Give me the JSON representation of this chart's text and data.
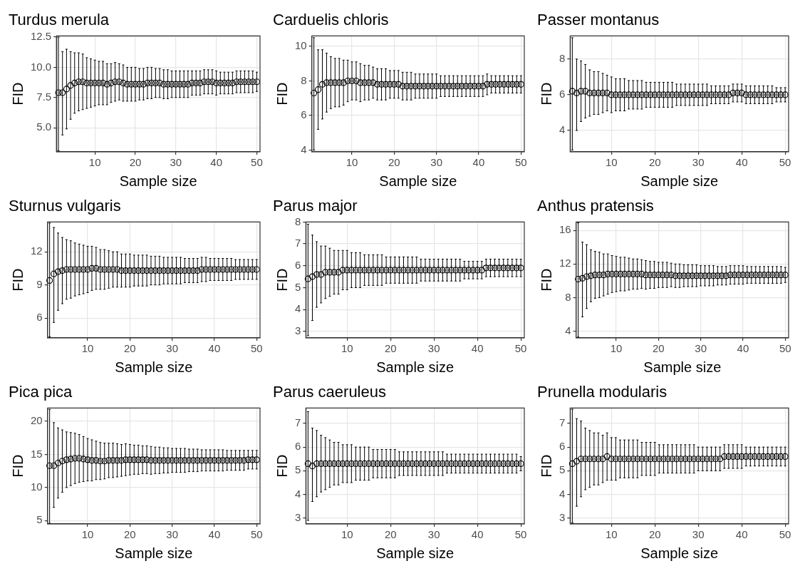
{
  "chart_data": [
    {
      "type": "scatter",
      "title": "Turdus merula",
      "xlabel": "Sample size",
      "ylabel": "FID",
      "color": "#000000",
      "marker": "circle",
      "grid": true,
      "xlim": [
        0.5,
        50.8
      ],
      "xticks": [
        10,
        20,
        30,
        40,
        50
      ],
      "ylim": [
        3,
        12.6
      ],
      "yticks": [
        {
          "value": 5,
          "label": "5.0"
        },
        {
          "value": 7.5,
          "label": "7.5"
        },
        {
          "value": 10,
          "label": "10.0"
        },
        {
          "value": 12.5,
          "label": "12.5"
        }
      ],
      "x": [
        1,
        2,
        3,
        4,
        5,
        6,
        7,
        8,
        9,
        10,
        11,
        12,
        13,
        14,
        15,
        16,
        17,
        18,
        19,
        20,
        21,
        22,
        23,
        24,
        25,
        26,
        27,
        28,
        29,
        30,
        31,
        32,
        33,
        34,
        35,
        36,
        37,
        38,
        39,
        40,
        41,
        42,
        43,
        44,
        45,
        46,
        47,
        48,
        49,
        50
      ],
      "values": [
        7.9,
        7.9,
        8.2,
        8.5,
        8.7,
        8.8,
        8.8,
        8.7,
        8.7,
        8.7,
        8.7,
        8.7,
        8.6,
        8.7,
        8.8,
        8.8,
        8.7,
        8.6,
        8.6,
        8.6,
        8.6,
        8.6,
        8.7,
        8.7,
        8.7,
        8.7,
        8.6,
        8.6,
        8.6,
        8.6,
        8.6,
        8.6,
        8.6,
        8.7,
        8.7,
        8.7,
        8.8,
        8.8,
        8.8,
        8.7,
        8.7,
        8.7,
        8.7,
        8.7,
        8.8,
        8.8,
        8.8,
        8.8,
        8.8,
        8.8
      ],
      "errors": [
        [
          3.1,
          12.5
        ],
        [
          4.4,
          11.3
        ],
        3.3,
        2.8,
        2.5,
        2.4,
        2.3,
        2.1,
        2.0,
        1.9,
        1.8,
        1.8,
        1.7,
        1.6,
        1.6,
        1.5,
        1.5,
        1.4,
        1.4,
        1.4,
        1.3,
        1.3,
        1.3,
        1.3,
        1.2,
        1.2,
        1.2,
        1.2,
        1.1,
        1.1,
        1.1,
        1.1,
        1.1,
        1.0,
        1.0,
        1.0,
        1.0,
        1.0,
        1.0,
        1.0,
        0.9,
        0.9,
        0.9,
        0.9,
        0.9,
        0.9,
        0.9,
        0.9,
        0.9,
        0.8
      ]
    },
    {
      "type": "scatter",
      "title": "Carduelis chloris",
      "xlabel": "Sample size",
      "ylabel": "FID",
      "color": "#000000",
      "marker": "circle",
      "grid": true,
      "xlim": [
        0.5,
        50.8
      ],
      "xticks": [
        10,
        20,
        30,
        40,
        50
      ],
      "ylim": [
        3.9,
        10.6
      ],
      "yticks": [
        4,
        6,
        8,
        10
      ],
      "x": [
        1,
        2,
        3,
        4,
        5,
        6,
        7,
        8,
        9,
        10,
        11,
        12,
        13,
        14,
        15,
        16,
        17,
        18,
        19,
        20,
        21,
        22,
        23,
        24,
        25,
        26,
        27,
        28,
        29,
        30,
        31,
        32,
        33,
        34,
        35,
        36,
        37,
        38,
        39,
        40,
        41,
        42,
        43,
        44,
        45,
        46,
        47,
        48,
        49,
        50
      ],
      "values": [
        7.3,
        7.5,
        7.8,
        7.9,
        7.9,
        7.9,
        7.9,
        7.9,
        8.0,
        8.0,
        8.0,
        7.9,
        7.9,
        7.9,
        7.9,
        7.8,
        7.8,
        7.8,
        7.8,
        7.8,
        7.8,
        7.7,
        7.7,
        7.7,
        7.7,
        7.7,
        7.7,
        7.7,
        7.7,
        7.7,
        7.7,
        7.7,
        7.7,
        7.7,
        7.7,
        7.7,
        7.7,
        7.7,
        7.7,
        7.7,
        7.7,
        7.8,
        7.8,
        7.8,
        7.8,
        7.8,
        7.8,
        7.8,
        7.8,
        7.8
      ],
      "errors": [
        [
          4.0,
          10.5
        ],
        [
          5.2,
          9.8
        ],
        2.0,
        1.7,
        1.5,
        1.4,
        1.4,
        1.3,
        1.2,
        1.1,
        1.1,
        1.1,
        1.0,
        1.0,
        0.9,
        0.9,
        0.9,
        0.9,
        0.8,
        0.8,
        0.8,
        0.8,
        0.8,
        0.8,
        0.7,
        0.7,
        0.7,
        0.7,
        0.7,
        0.7,
        0.6,
        0.6,
        0.6,
        0.6,
        0.6,
        0.6,
        0.6,
        0.6,
        0.6,
        0.6,
        0.6,
        0.6,
        0.5,
        0.5,
        0.5,
        0.5,
        0.5,
        0.5,
        0.5,
        0.5
      ]
    },
    {
      "type": "scatter",
      "title": "Passer montanus",
      "xlabel": "Sample size",
      "ylabel": "FID",
      "color": "#000000",
      "marker": "circle",
      "grid": true,
      "xlim": [
        0.5,
        50.8
      ],
      "xticks": [
        10,
        20,
        30,
        40,
        50
      ],
      "ylim": [
        2.8,
        9.3
      ],
      "yticks": [
        4,
        6,
        8
      ],
      "x": [
        1,
        2,
        3,
        4,
        5,
        6,
        7,
        8,
        9,
        10,
        11,
        12,
        13,
        14,
        15,
        16,
        17,
        18,
        19,
        20,
        21,
        22,
        23,
        24,
        25,
        26,
        27,
        28,
        29,
        30,
        31,
        32,
        33,
        34,
        35,
        36,
        37,
        38,
        39,
        40,
        41,
        42,
        43,
        44,
        45,
        46,
        47,
        48,
        49,
        50
      ],
      "values": [
        6.2,
        6.1,
        6.2,
        6.2,
        6.1,
        6.1,
        6.1,
        6.1,
        6.1,
        6.0,
        6.0,
        6.0,
        6.0,
        6.0,
        6.0,
        6.0,
        6.0,
        6.0,
        6.0,
        6.0,
        6.0,
        6.0,
        6.0,
        6.0,
        6.0,
        6.0,
        6.0,
        6.0,
        6.0,
        6.0,
        6.0,
        6.0,
        6.0,
        6.0,
        6.0,
        6.0,
        6.0,
        6.1,
        6.1,
        6.1,
        6.0,
        6.0,
        6.0,
        6.0,
        6.0,
        6.0,
        6.0,
        6.0,
        6.0,
        6.0
      ],
      "errors": [
        [
          2.9,
          9.2
        ],
        [
          4.0,
          8.0
        ],
        1.7,
        1.5,
        1.3,
        1.2,
        1.2,
        1.1,
        1.0,
        1.0,
        0.9,
        0.9,
        0.9,
        0.8,
        0.8,
        0.8,
        0.8,
        0.7,
        0.7,
        0.7,
        0.7,
        0.7,
        0.7,
        0.7,
        0.6,
        0.6,
        0.6,
        0.6,
        0.6,
        0.6,
        0.6,
        0.6,
        0.5,
        0.5,
        0.5,
        0.5,
        0.5,
        0.5,
        0.5,
        0.5,
        0.5,
        0.5,
        0.5,
        0.5,
        0.5,
        0.5,
        0.5,
        0.4,
        0.4,
        0.4
      ]
    },
    {
      "type": "scatter",
      "title": "Sturnus vulgaris",
      "xlabel": "Sample size",
      "ylabel": "FID",
      "color": "#000000",
      "marker": "circle",
      "grid": true,
      "xlim": [
        0.5,
        50.8
      ],
      "xticks": [
        10,
        20,
        30,
        40,
        50
      ],
      "ylim": [
        4.2,
        14.7
      ],
      "yticks": [
        6,
        9,
        12
      ],
      "x": [
        1,
        2,
        3,
        4,
        5,
        6,
        7,
        8,
        9,
        10,
        11,
        12,
        13,
        14,
        15,
        16,
        17,
        18,
        19,
        20,
        21,
        22,
        23,
        24,
        25,
        26,
        27,
        28,
        29,
        30,
        31,
        32,
        33,
        34,
        35,
        36,
        37,
        38,
        39,
        40,
        41,
        42,
        43,
        44,
        45,
        46,
        47,
        48,
        49,
        50
      ],
      "values": [
        9.4,
        10.0,
        10.2,
        10.3,
        10.4,
        10.4,
        10.4,
        10.4,
        10.4,
        10.4,
        10.5,
        10.5,
        10.4,
        10.4,
        10.4,
        10.4,
        10.4,
        10.3,
        10.3,
        10.3,
        10.3,
        10.3,
        10.3,
        10.3,
        10.3,
        10.3,
        10.3,
        10.3,
        10.3,
        10.3,
        10.3,
        10.3,
        10.3,
        10.3,
        10.3,
        10.3,
        10.4,
        10.4,
        10.4,
        10.4,
        10.4,
        10.4,
        10.4,
        10.4,
        10.4,
        10.4,
        10.4,
        10.4,
        10.4,
        10.4
      ],
      "errors": [
        [
          4.3,
          14.6
        ],
        [
          5.6,
          14.2
        ],
        3.5,
        3.0,
        2.7,
        2.6,
        2.4,
        2.3,
        2.2,
        2.1,
        2.0,
        1.9,
        1.8,
        1.8,
        1.7,
        1.6,
        1.6,
        1.5,
        1.5,
        1.5,
        1.4,
        1.4,
        1.4,
        1.4,
        1.3,
        1.3,
        1.3,
        1.2,
        1.2,
        1.2,
        1.2,
        1.2,
        1.1,
        1.1,
        1.1,
        1.1,
        1.1,
        1.1,
        1.0,
        1.0,
        1.0,
        1.0,
        1.0,
        1.0,
        0.9,
        0.9,
        0.9,
        0.9,
        0.9,
        0.9
      ]
    },
    {
      "type": "scatter",
      "title": "Parus major",
      "xlabel": "Sample size",
      "ylabel": "FID",
      "color": "#000000",
      "marker": "circle",
      "grid": true,
      "xlim": [
        0.5,
        50.8
      ],
      "xticks": [
        10,
        20,
        30,
        40,
        50
      ],
      "ylim": [
        2.7,
        8
      ],
      "yticks": [
        3,
        4,
        5,
        6,
        7,
        8
      ],
      "x": [
        1,
        2,
        3,
        4,
        5,
        6,
        7,
        8,
        9,
        10,
        11,
        12,
        13,
        14,
        15,
        16,
        17,
        18,
        19,
        20,
        21,
        22,
        23,
        24,
        25,
        26,
        27,
        28,
        29,
        30,
        31,
        32,
        33,
        34,
        35,
        36,
        37,
        38,
        39,
        40,
        41,
        42,
        43,
        44,
        45,
        46,
        47,
        48,
        49,
        50
      ],
      "values": [
        5.4,
        5.5,
        5.6,
        5.6,
        5.7,
        5.7,
        5.7,
        5.7,
        5.8,
        5.8,
        5.8,
        5.8,
        5.8,
        5.8,
        5.8,
        5.8,
        5.8,
        5.8,
        5.8,
        5.8,
        5.8,
        5.8,
        5.8,
        5.8,
        5.8,
        5.8,
        5.8,
        5.8,
        5.8,
        5.8,
        5.8,
        5.8,
        5.8,
        5.8,
        5.8,
        5.8,
        5.8,
        5.8,
        5.8,
        5.8,
        5.8,
        5.9,
        5.9,
        5.9,
        5.9,
        5.9,
        5.9,
        5.9,
        5.9,
        5.9
      ],
      "errors": [
        [
          2.8,
          7.9
        ],
        [
          3.5,
          7.4
        ],
        1.5,
        1.3,
        1.2,
        1.1,
        1.0,
        1.0,
        0.9,
        0.9,
        0.8,
        0.8,
        0.8,
        0.7,
        0.7,
        0.7,
        0.7,
        0.7,
        0.6,
        0.6,
        0.6,
        0.6,
        0.6,
        0.6,
        0.6,
        0.6,
        0.5,
        0.5,
        0.5,
        0.5,
        0.5,
        0.5,
        0.5,
        0.5,
        0.5,
        0.5,
        0.4,
        0.4,
        0.4,
        0.4,
        0.4,
        0.4,
        0.4,
        0.4,
        0.4,
        0.4,
        0.4,
        0.4,
        0.4,
        0.4
      ]
    },
    {
      "type": "scatter",
      "title": "Anthus pratensis",
      "xlabel": "Sample size",
      "ylabel": "FID",
      "color": "#000000",
      "marker": "circle",
      "grid": true,
      "xlim": [
        0.5,
        50.8
      ],
      "xticks": [
        10,
        20,
        30,
        40,
        50
      ],
      "ylim": [
        3.2,
        17
      ],
      "yticks": [
        4,
        8,
        12,
        16
      ],
      "x": [
        1,
        2,
        3,
        4,
        5,
        6,
        7,
        8,
        9,
        10,
        11,
        12,
        13,
        14,
        15,
        16,
        17,
        18,
        19,
        20,
        21,
        22,
        23,
        24,
        25,
        26,
        27,
        28,
        29,
        30,
        31,
        32,
        33,
        34,
        35,
        36,
        37,
        38,
        39,
        40,
        41,
        42,
        43,
        44,
        45,
        46,
        47,
        48,
        49,
        50
      ],
      "values": [
        10.2,
        10.3,
        10.5,
        10.6,
        10.7,
        10.7,
        10.7,
        10.8,
        10.8,
        10.8,
        10.8,
        10.8,
        10.8,
        10.8,
        10.8,
        10.8,
        10.7,
        10.7,
        10.7,
        10.7,
        10.7,
        10.7,
        10.7,
        10.6,
        10.6,
        10.6,
        10.6,
        10.6,
        10.6,
        10.6,
        10.6,
        10.6,
        10.6,
        10.6,
        10.6,
        10.6,
        10.7,
        10.7,
        10.7,
        10.7,
        10.7,
        10.7,
        10.7,
        10.7,
        10.7,
        10.7,
        10.7,
        10.7,
        10.7,
        10.7
      ],
      "errors": [
        [
          3.3,
          16.9
        ],
        [
          5.7,
          14.6
        ],
        3.8,
        3.1,
        2.8,
        2.7,
        2.5,
        2.4,
        2.2,
        2.1,
        2.0,
        2.0,
        1.9,
        1.8,
        1.8,
        1.7,
        1.7,
        1.6,
        1.6,
        1.5,
        1.5,
        1.5,
        1.4,
        1.4,
        1.4,
        1.3,
        1.3,
        1.3,
        1.3,
        1.2,
        1.2,
        1.2,
        1.2,
        1.1,
        1.1,
        1.1,
        1.1,
        1.1,
        1.1,
        1.1,
        1.0,
        1.0,
        1.0,
        1.0,
        1.0,
        1.0,
        1.0,
        1.0,
        1.0,
        0.9
      ]
    },
    {
      "type": "scatter",
      "title": "Pica pica",
      "xlabel": "Sample size",
      "ylabel": "FID",
      "color": "#000000",
      "marker": "circle",
      "grid": true,
      "xlim": [
        0.5,
        50.8
      ],
      "xticks": [
        10,
        20,
        30,
        40,
        50
      ],
      "ylim": [
        4.5,
        22
      ],
      "yticks": [
        5,
        10,
        15,
        20
      ],
      "x": [
        1,
        2,
        3,
        4,
        5,
        6,
        7,
        8,
        9,
        10,
        11,
        12,
        13,
        14,
        15,
        16,
        17,
        18,
        19,
        20,
        21,
        22,
        23,
        24,
        25,
        26,
        27,
        28,
        29,
        30,
        31,
        32,
        33,
        34,
        35,
        36,
        37,
        38,
        39,
        40,
        41,
        42,
        43,
        44,
        45,
        46,
        47,
        48,
        49,
        50
      ],
      "values": [
        13.3,
        13.3,
        13.7,
        14.0,
        14.2,
        14.3,
        14.4,
        14.4,
        14.3,
        14.2,
        14.1,
        14.1,
        14.0,
        14.0,
        14.1,
        14.1,
        14.1,
        14.1,
        14.2,
        14.2,
        14.2,
        14.2,
        14.2,
        14.2,
        14.1,
        14.1,
        14.1,
        14.1,
        14.1,
        14.1,
        14.1,
        14.1,
        14.1,
        14.1,
        14.1,
        14.1,
        14.1,
        14.1,
        14.1,
        14.1,
        14.1,
        14.1,
        14.1,
        14.1,
        14.1,
        14.1,
        14.1,
        14.2,
        14.2,
        14.2
      ],
      "errors": [
        [
          4.6,
          21.8
        ],
        [
          7.0,
          19.8
        ],
        5.3,
        4.7,
        4.2,
        4.0,
        3.8,
        3.6,
        3.4,
        3.2,
        3.1,
        2.9,
        2.8,
        2.7,
        2.6,
        2.6,
        2.5,
        2.4,
        2.4,
        2.3,
        2.2,
        2.2,
        2.1,
        2.1,
        2.1,
        2.0,
        2.0,
        1.9,
        1.9,
        1.8,
        1.8,
        1.8,
        1.8,
        1.7,
        1.7,
        1.7,
        1.6,
        1.6,
        1.6,
        1.6,
        1.6,
        1.6,
        1.5,
        1.5,
        1.5,
        1.5,
        1.5,
        1.4,
        1.4,
        1.4
      ]
    },
    {
      "type": "scatter",
      "title": "Parus caeruleus",
      "xlabel": "Sample size",
      "ylabel": "FID",
      "color": "#000000",
      "marker": "circle",
      "grid": true,
      "xlim": [
        0.5,
        50.8
      ],
      "xticks": [
        10,
        20,
        30,
        40,
        50
      ],
      "ylim": [
        2.75,
        7.65
      ],
      "yticks": [
        3,
        4,
        5,
        6,
        7
      ],
      "x": [
        1,
        2,
        3,
        4,
        5,
        6,
        7,
        8,
        9,
        10,
        11,
        12,
        13,
        14,
        15,
        16,
        17,
        18,
        19,
        20,
        21,
        22,
        23,
        24,
        25,
        26,
        27,
        28,
        29,
        30,
        31,
        32,
        33,
        34,
        35,
        36,
        37,
        38,
        39,
        40,
        41,
        42,
        43,
        44,
        45,
        46,
        47,
        48,
        49,
        50
      ],
      "values": [
        5.3,
        5.2,
        5.3,
        5.3,
        5.3,
        5.3,
        5.3,
        5.3,
        5.3,
        5.3,
        5.3,
        5.3,
        5.3,
        5.3,
        5.3,
        5.3,
        5.3,
        5.3,
        5.3,
        5.3,
        5.3,
        5.3,
        5.3,
        5.3,
        5.3,
        5.3,
        5.3,
        5.3,
        5.3,
        5.3,
        5.3,
        5.3,
        5.3,
        5.3,
        5.3,
        5.3,
        5.3,
        5.3,
        5.3,
        5.3,
        5.3,
        5.3,
        5.3,
        5.3,
        5.3,
        5.3,
        5.3,
        5.3,
        5.3,
        5.3
      ],
      "errors": [
        [
          2.9,
          7.5
        ],
        [
          3.7,
          6.8
        ],
        1.4,
        1.2,
        1.1,
        1.0,
        0.9,
        0.9,
        0.8,
        0.8,
        0.8,
        0.7,
        0.7,
        0.7,
        0.7,
        0.6,
        0.6,
        0.6,
        0.6,
        0.6,
        0.6,
        0.5,
        0.5,
        0.5,
        0.5,
        0.5,
        0.5,
        0.5,
        0.5,
        0.5,
        0.5,
        0.5,
        0.4,
        0.4,
        0.4,
        0.4,
        0.4,
        0.4,
        0.4,
        0.4,
        0.4,
        0.4,
        0.4,
        0.4,
        0.4,
        0.4,
        0.4,
        0.4,
        0.4,
        0.3
      ]
    },
    {
      "type": "scatter",
      "title": "Prunella modularis",
      "xlabel": "Sample size",
      "ylabel": "FID",
      "color": "#000000",
      "marker": "circle",
      "grid": true,
      "xlim": [
        0.5,
        50.8
      ],
      "xticks": [
        10,
        20,
        30,
        40,
        50
      ],
      "ylim": [
        2.75,
        7.65
      ],
      "yticks": [
        3,
        4,
        5,
        6,
        7
      ],
      "x": [
        1,
        2,
        3,
        4,
        5,
        6,
        7,
        8,
        9,
        10,
        11,
        12,
        13,
        14,
        15,
        16,
        17,
        18,
        19,
        20,
        21,
        22,
        23,
        24,
        25,
        26,
        27,
        28,
        29,
        30,
        31,
        32,
        33,
        34,
        35,
        36,
        37,
        38,
        39,
        40,
        41,
        42,
        43,
        44,
        45,
        46,
        47,
        48,
        49,
        50
      ],
      "values": [
        5.3,
        5.4,
        5.5,
        5.5,
        5.5,
        5.5,
        5.5,
        5.5,
        5.6,
        5.5,
        5.5,
        5.5,
        5.5,
        5.5,
        5.5,
        5.5,
        5.5,
        5.5,
        5.5,
        5.5,
        5.5,
        5.5,
        5.5,
        5.5,
        5.5,
        5.5,
        5.5,
        5.5,
        5.5,
        5.5,
        5.5,
        5.5,
        5.5,
        5.5,
        5.5,
        5.6,
        5.6,
        5.6,
        5.6,
        5.6,
        5.6,
        5.6,
        5.6,
        5.6,
        5.6,
        5.6,
        5.6,
        5.6,
        5.6,
        5.6
      ],
      "errors": [
        [
          2.8,
          7.6
        ],
        [
          3.5,
          7.2
        ],
        1.6,
        1.3,
        1.2,
        1.1,
        1.1,
        1.0,
        1.0,
        0.9,
        0.9,
        0.8,
        0.8,
        0.8,
        0.8,
        0.8,
        0.7,
        0.7,
        0.7,
        0.7,
        0.6,
        0.6,
        0.6,
        0.6,
        0.6,
        0.6,
        0.6,
        0.6,
        0.6,
        0.5,
        0.5,
        0.5,
        0.5,
        0.5,
        0.5,
        0.5,
        0.5,
        0.5,
        0.5,
        0.5,
        0.4,
        0.4,
        0.4,
        0.4,
        0.4,
        0.4,
        0.4,
        0.4,
        0.4,
        0.4
      ]
    }
  ]
}
